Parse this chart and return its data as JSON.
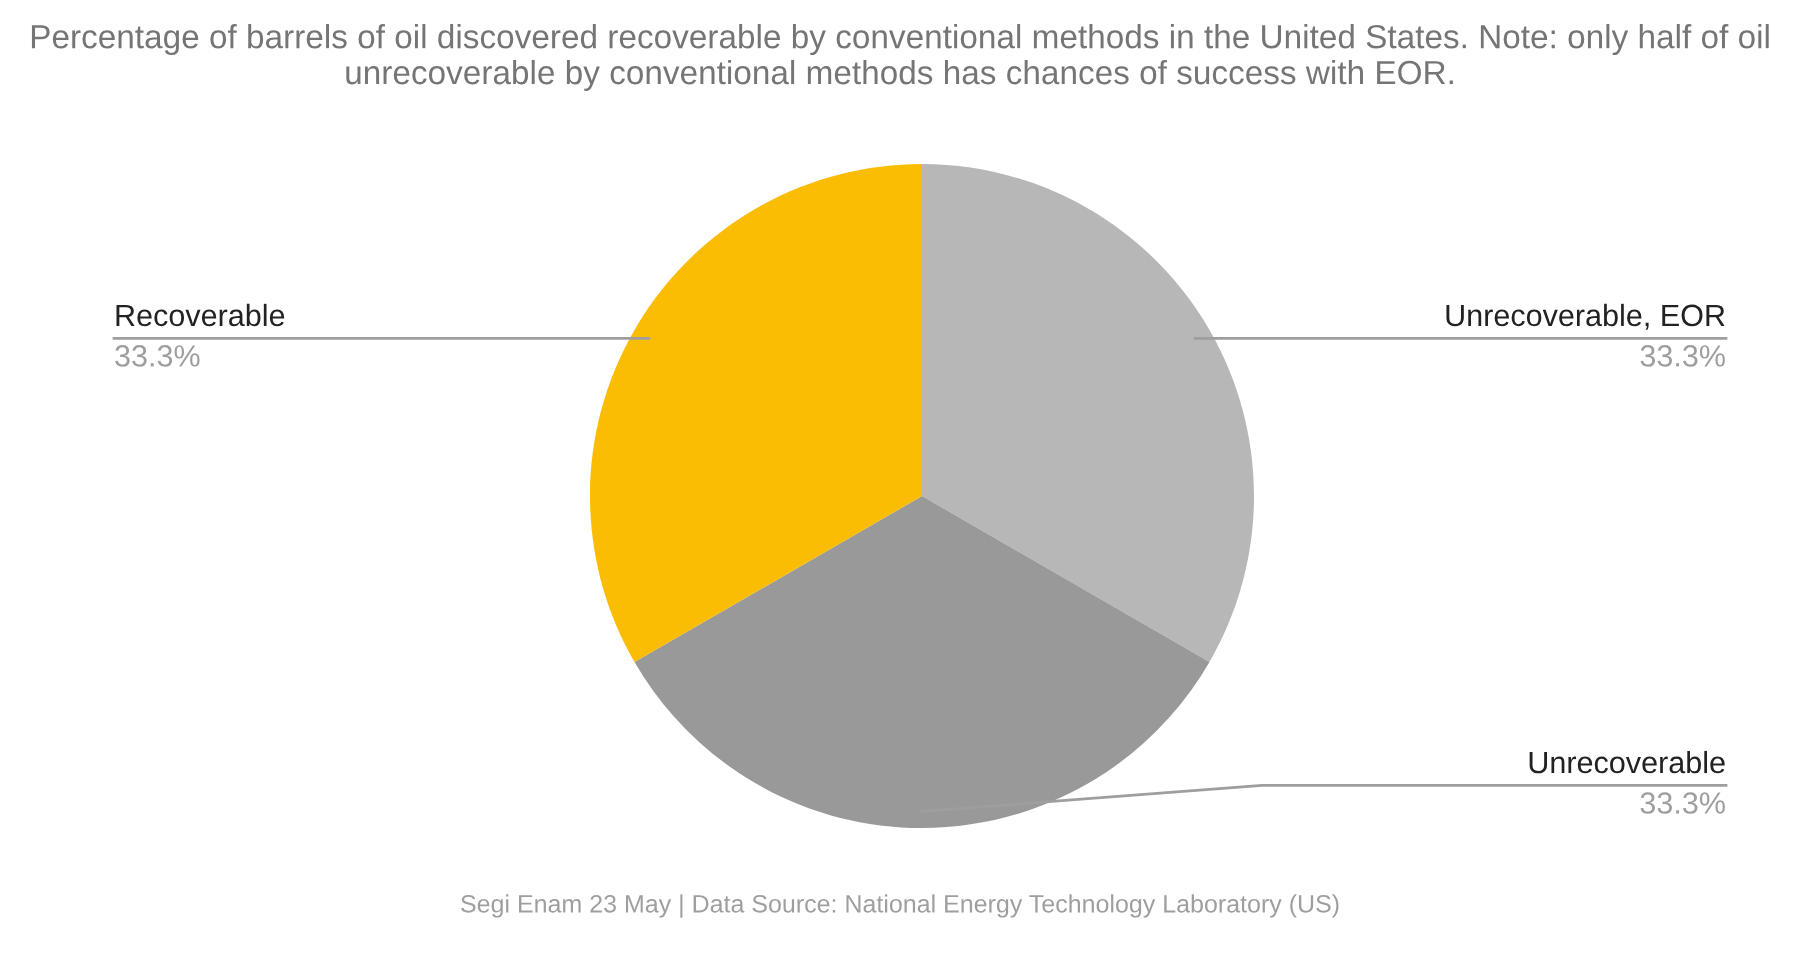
{
  "chart_data": {
    "type": "pie",
    "title": "Percentage of barrels of oil discovered recoverable by conventional methods in the United States. Note: only half of oil unrecoverable by conventional methods has chances of success with EOR.",
    "categories": [
      "Unrecoverable, EOR",
      "Unrecoverable",
      "Recoverable"
    ],
    "values": [
      33.3,
      33.3,
      33.3
    ],
    "value_labels": [
      "33.3%",
      "33.3%",
      "33.3%"
    ],
    "colors": [
      "#b7b7b7",
      "#999999",
      "#fbbc04"
    ],
    "annotations": [
      "Segi Enam 23 May | Data Source: National Energy Technology Laboratory (US)"
    ],
    "legend": false
  }
}
